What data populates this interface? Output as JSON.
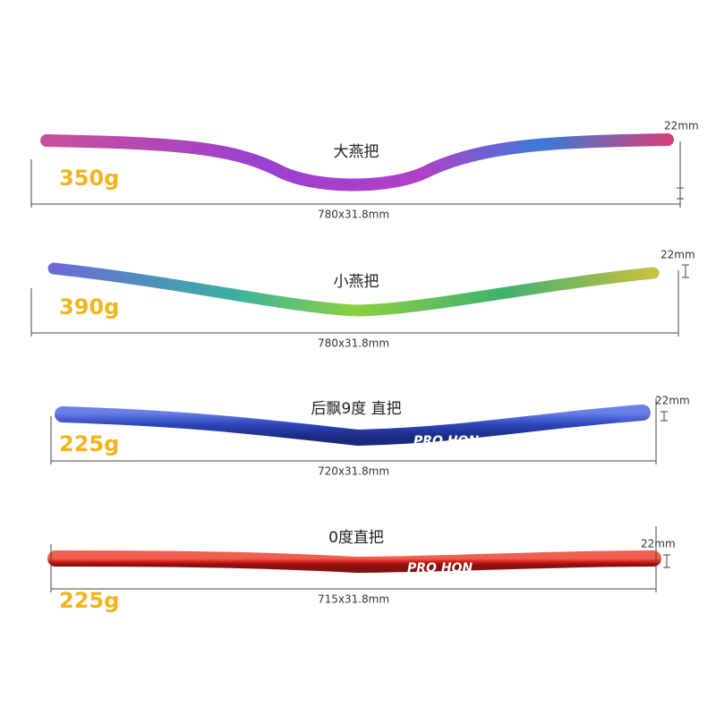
{
  "items": [
    {
      "name": "大燕把",
      "weight": "350g",
      "size": "780x31.8mm",
      "rise": "22mm"
    },
    {
      "name": "小燕把",
      "weight": "390g",
      "size": "780x31.8mm",
      "rise": "22mm"
    },
    {
      "name": "后飘9度  直把",
      "weight": "225g",
      "size": "720x31.8mm",
      "rise": "22mm",
      "brand": "PRO HON"
    },
    {
      "name": "0度直把",
      "weight": "225g",
      "size": "715x31.8mm",
      "rise": "22mm",
      "brand": "PRO HON"
    }
  ]
}
